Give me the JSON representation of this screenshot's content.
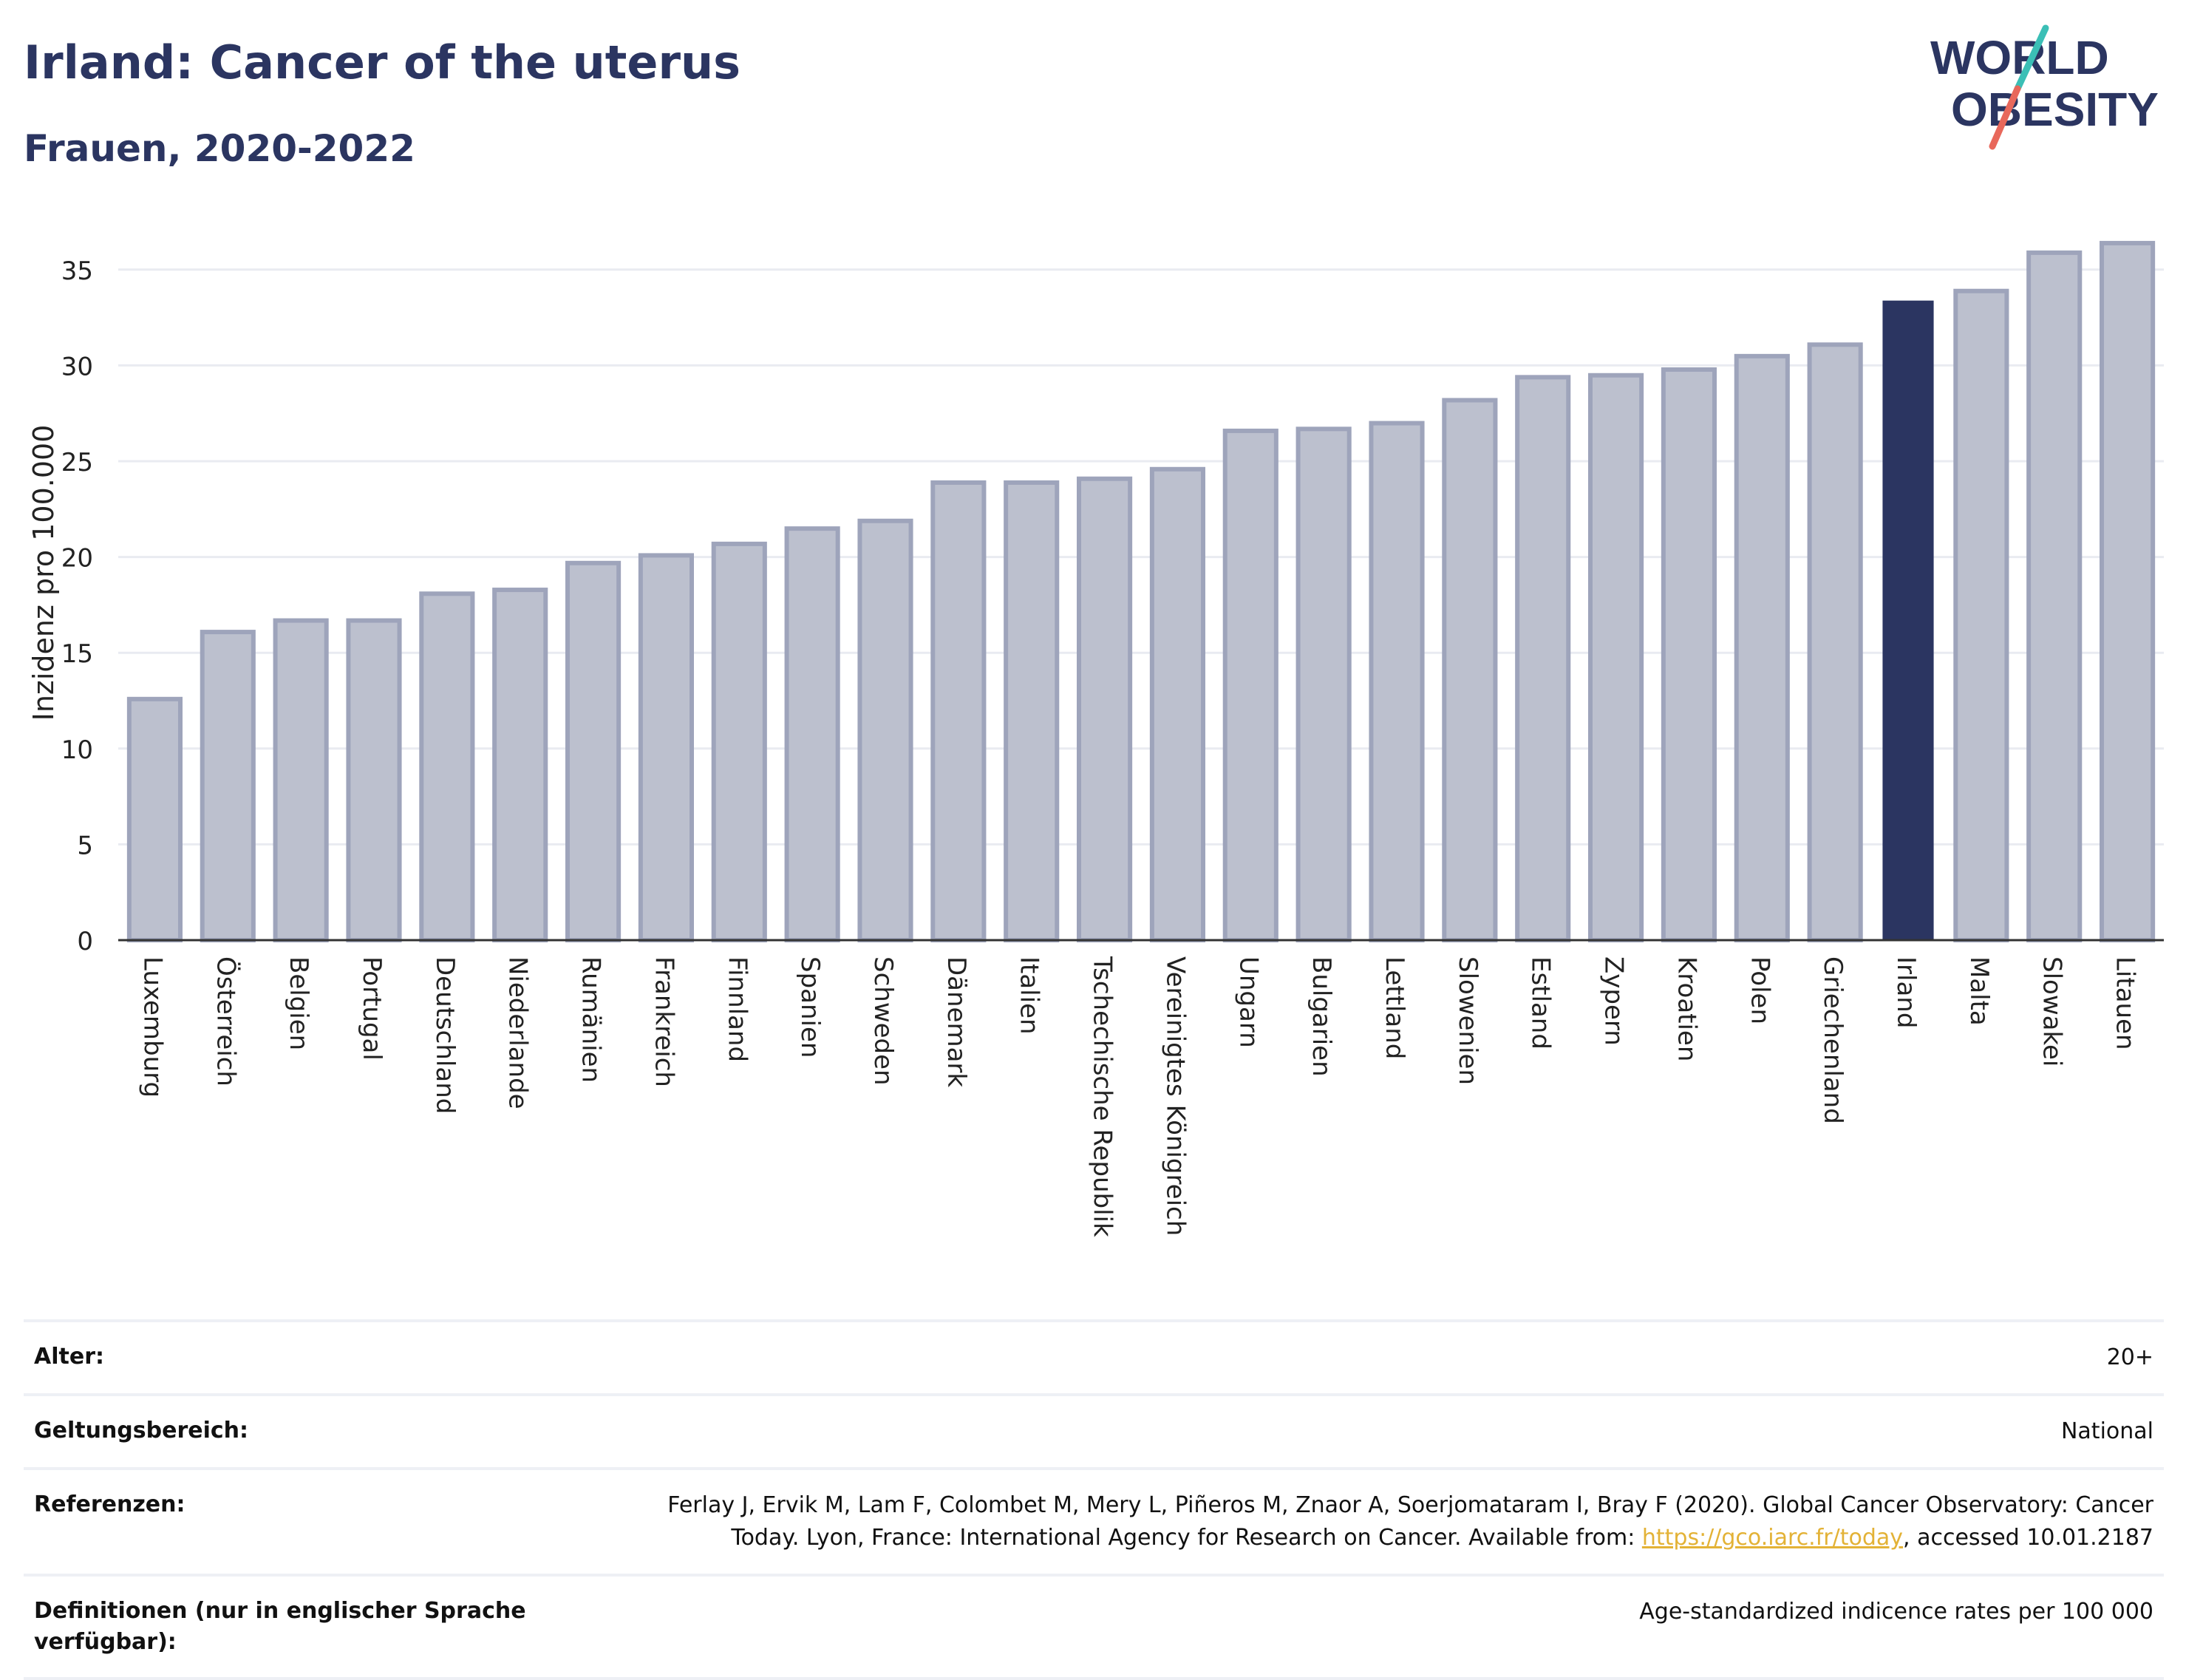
{
  "header": {
    "title": "Irland: Cancer of the uterus",
    "subtitle": "Frauen, 2020-2022"
  },
  "logo": {
    "line1": "WORLD",
    "line2": "OBESITY",
    "colors": {
      "text": "#2b3561",
      "slash_teal": "#3bbfb6",
      "slash_coral": "#e8685b"
    }
  },
  "chart_data": {
    "type": "bar",
    "ylabel": "Inzidenz pro 100.000",
    "xlabel": "",
    "ylim": [
      0,
      37.5
    ],
    "yticks": [
      0,
      5,
      10,
      15,
      20,
      25,
      30,
      35
    ],
    "grid": true,
    "highlight": "Irland",
    "colors": {
      "bar": "#bcc0ce",
      "bar_stroke": "#9ea4bb",
      "highlight": "#2b3561"
    },
    "categories": [
      "Luxemburg",
      "Österreich",
      "Belgien",
      "Portugal",
      "Deutschland",
      "Niederlande",
      "Rumänien",
      "Frankreich",
      "Finnland",
      "Spanien",
      "Schweden",
      "Dänemark",
      "Italien",
      "Tschechische Republik",
      "Vereinigtes Königreich",
      "Ungarn",
      "Bulgarien",
      "Lettland",
      "Slowenien",
      "Estland",
      "Zypern",
      "Kroatien",
      "Polen",
      "Griechenland",
      "Irland",
      "Malta",
      "Slowakei",
      "Litauen"
    ],
    "values": [
      12.7,
      16.2,
      16.8,
      16.8,
      18.2,
      18.4,
      19.8,
      20.2,
      20.8,
      21.6,
      22.0,
      24.0,
      24.0,
      24.2,
      24.7,
      26.7,
      26.8,
      27.1,
      28.3,
      29.5,
      29.6,
      29.9,
      30.6,
      31.2,
      33.5,
      34.0,
      36.0,
      36.5
    ]
  },
  "meta": {
    "age_label": "Alter:",
    "age_value": "20+",
    "scope_label": "Geltungsbereich:",
    "scope_value": "National",
    "refs_label": "Referenzen:",
    "refs_line1": "Ferlay J, Ervik M, Lam F, Colombet M, Mery L, Piñeros M, Znaor A, Soerjomataram I, Bray F (2020). Global Cancer Observatory: Cancer",
    "refs_line2_pre": "Today. Lyon, France: International Agency for Research on Cancer. Available from: ",
    "refs_link": "https://gco.iarc.fr/today",
    "refs_line2_post": ", accessed 10.01.2187",
    "defs_label": "Definitionen (nur in englischer Sprache verfügbar):",
    "defs_value": "Age-standardized indicence rates per 100 000"
  }
}
